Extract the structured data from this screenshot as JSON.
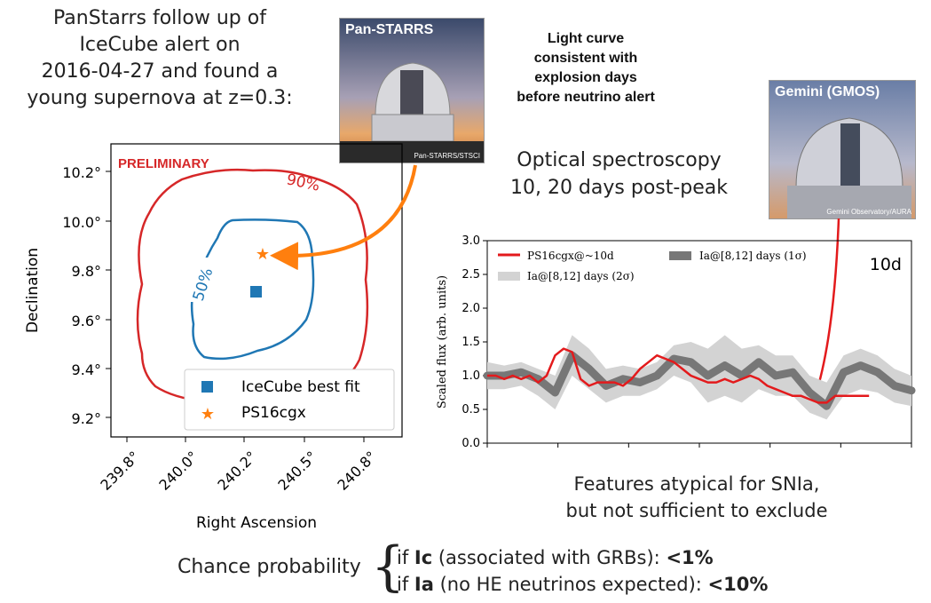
{
  "intro": {
    "line1": "PanStarrs follow up of",
    "line2": "IceCube alert on",
    "line3": "2016-04-27 and found a",
    "line4": "young supernova at z=0.3:"
  },
  "panstarrs_photo": {
    "title": "Pan-STARRS",
    "credit": "Pan-STARRS/STSCI"
  },
  "gemini_photo": {
    "title": "Gemini (GMOS)",
    "credit": "Gemini Observatory/AURA"
  },
  "light_curve_note": {
    "line1": "Light curve",
    "line2": "consistent with",
    "line3": "explosion days",
    "line4": "before neutrino alert"
  },
  "optical": {
    "line1": "Optical spectroscopy",
    "line2": "10, 20 days post-peak"
  },
  "features": {
    "line1": "Features atypical for SNIa,",
    "line2": "but not sufficient to exclude"
  },
  "chance": {
    "label": "Chance probability",
    "ic_prefix": "if ",
    "ic_bold": "Ic",
    "ic_text": " (associated with GRBs): ",
    "ic_value": "<1%",
    "ia_prefix": "if ",
    "ia_bold": "Ia",
    "ia_text": " (no HE neutrinos expected): ",
    "ia_value": "<10%"
  },
  "skymap": {
    "preliminary": "PRELIMINARY",
    "xlabel": "Right Ascension",
    "ylabel": "Declination",
    "xticks": [
      "239.8°",
      "240.0°",
      "240.2°",
      "240.5°",
      "240.8°"
    ],
    "yticks": [
      "10.2°",
      "10.0°",
      "9.8°",
      "9.6°",
      "9.4°",
      "9.2°"
    ],
    "contour_90_label": "90%",
    "contour_50_label": "50%",
    "legend": [
      "IceCube best fit",
      "PS16cgx"
    ],
    "colors": {
      "contour90": "#d62728",
      "contour50": "#1f77b4",
      "bestfit": "#1f77b4",
      "star": "#ff7f0e"
    }
  },
  "chart_data": {
    "type": "line",
    "ylabel": "Scaled flux (arb. units)",
    "ylim": [
      0.0,
      3.0
    ],
    "yticks": [
      "0.0",
      "0.5",
      "1.0",
      "1.5",
      "2.0",
      "2.5",
      "3.0"
    ],
    "panel_label": "10d",
    "legend": [
      {
        "name": "PS16cgx@~10d",
        "color": "#e31a1c"
      },
      {
        "name": "Ia@[8,12] days (1σ)",
        "color": "#777777"
      },
      {
        "name": "Ia@[8,12] days (2σ)",
        "color": "#d3d3d3"
      }
    ],
    "series": [
      {
        "name": "PS16cgx@~10d",
        "x": [
          0,
          0.02,
          0.04,
          0.06,
          0.08,
          0.1,
          0.12,
          0.14,
          0.16,
          0.18,
          0.2,
          0.22,
          0.24,
          0.26,
          0.28,
          0.3,
          0.32,
          0.34,
          0.36,
          0.38,
          0.4,
          0.42,
          0.44,
          0.46,
          0.48,
          0.5,
          0.52,
          0.54,
          0.56,
          0.58,
          0.6,
          0.62,
          0.64,
          0.66,
          0.68,
          0.7,
          0.72,
          0.74,
          0.76,
          0.78,
          0.8,
          0.82,
          0.84,
          0.86,
          0.88,
          0.9
        ],
        "y": [
          1.0,
          1.0,
          0.95,
          1.0,
          0.95,
          1.0,
          0.9,
          1.0,
          1.3,
          1.4,
          1.35,
          0.95,
          0.85,
          0.9,
          0.9,
          0.9,
          0.85,
          0.95,
          1.1,
          1.2,
          1.3,
          1.25,
          1.2,
          1.1,
          1.0,
          0.95,
          0.9,
          0.9,
          0.95,
          0.9,
          0.95,
          1.0,
          0.95,
          0.85,
          0.8,
          0.75,
          0.7,
          0.7,
          0.65,
          0.6,
          0.6,
          0.7,
          0.7,
          0.7,
          0.7,
          0.7
        ]
      },
      {
        "name": "Ia@[8,12] days (1σ)",
        "x": [
          0,
          0.04,
          0.08,
          0.12,
          0.16,
          0.2,
          0.24,
          0.28,
          0.32,
          0.36,
          0.4,
          0.44,
          0.48,
          0.52,
          0.56,
          0.6,
          0.64,
          0.68,
          0.72,
          0.76,
          0.8,
          0.84,
          0.88,
          0.92,
          0.96,
          1.0
        ],
        "y": [
          1.0,
          1.0,
          1.05,
          0.95,
          0.75,
          1.3,
          1.1,
          0.85,
          0.95,
          0.9,
          1.0,
          1.25,
          1.2,
          1.0,
          1.15,
          1.0,
          1.2,
          1.0,
          1.05,
          0.75,
          0.55,
          1.05,
          1.15,
          1.05,
          0.85,
          0.78
        ]
      },
      {
        "name": "Ia@[8,12] days (2σ)",
        "x": [
          0,
          0.04,
          0.08,
          0.12,
          0.16,
          0.2,
          0.24,
          0.28,
          0.32,
          0.36,
          0.4,
          0.44,
          0.48,
          0.52,
          0.56,
          0.6,
          0.64,
          0.68,
          0.72,
          0.76,
          0.8,
          0.84,
          0.88,
          0.92,
          0.96,
          1.0
        ],
        "upper": [
          1.2,
          1.15,
          1.2,
          1.1,
          1.0,
          1.6,
          1.4,
          1.1,
          1.15,
          1.1,
          1.2,
          1.45,
          1.5,
          1.4,
          1.6,
          1.4,
          1.45,
          1.3,
          1.3,
          1.0,
          0.9,
          1.3,
          1.4,
          1.3,
          1.1,
          1.0
        ],
        "lower": [
          0.8,
          0.8,
          0.85,
          0.7,
          0.5,
          1.0,
          0.8,
          0.6,
          0.7,
          0.7,
          0.8,
          1.0,
          0.9,
          0.6,
          0.7,
          0.6,
          0.8,
          0.7,
          0.7,
          0.45,
          0.35,
          0.7,
          0.8,
          0.75,
          0.6,
          0.55
        ]
      }
    ]
  }
}
